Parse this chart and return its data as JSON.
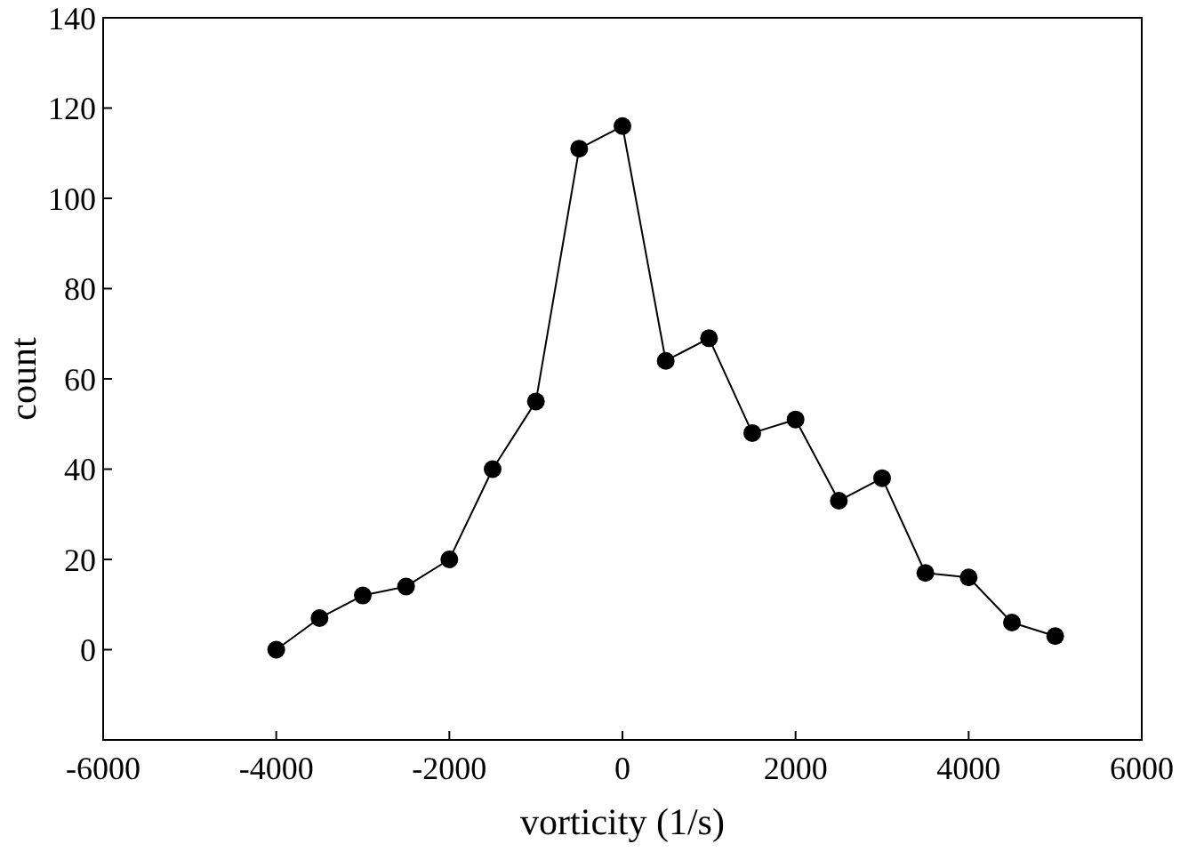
{
  "chart_data": {
    "type": "line",
    "xlabel": "vorticity (1/s)",
    "ylabel": "count",
    "marker": "circle",
    "line_style": "solid",
    "grid": false,
    "x": [
      -4000,
      -3500,
      -3000,
      -2500,
      -2000,
      -1500,
      -1000,
      -500,
      0,
      500,
      1000,
      1500,
      2000,
      2500,
      3000,
      3500,
      4000,
      4500,
      5000
    ],
    "series": [
      {
        "color": "#000000",
        "values": [
          0,
          7,
          12,
          14,
          20,
          40,
          55,
          111,
          116,
          64,
          69,
          48,
          51,
          33,
          38,
          17,
          16,
          6,
          3
        ]
      }
    ],
    "xlim": [
      -6000,
      6000
    ],
    "xticks": [
      -6000,
      -4000,
      -2000,
      0,
      2000,
      4000,
      6000
    ],
    "ylim": [
      -20,
      140
    ],
    "yticks": [
      0,
      20,
      40,
      60,
      80,
      100,
      120,
      140
    ]
  }
}
